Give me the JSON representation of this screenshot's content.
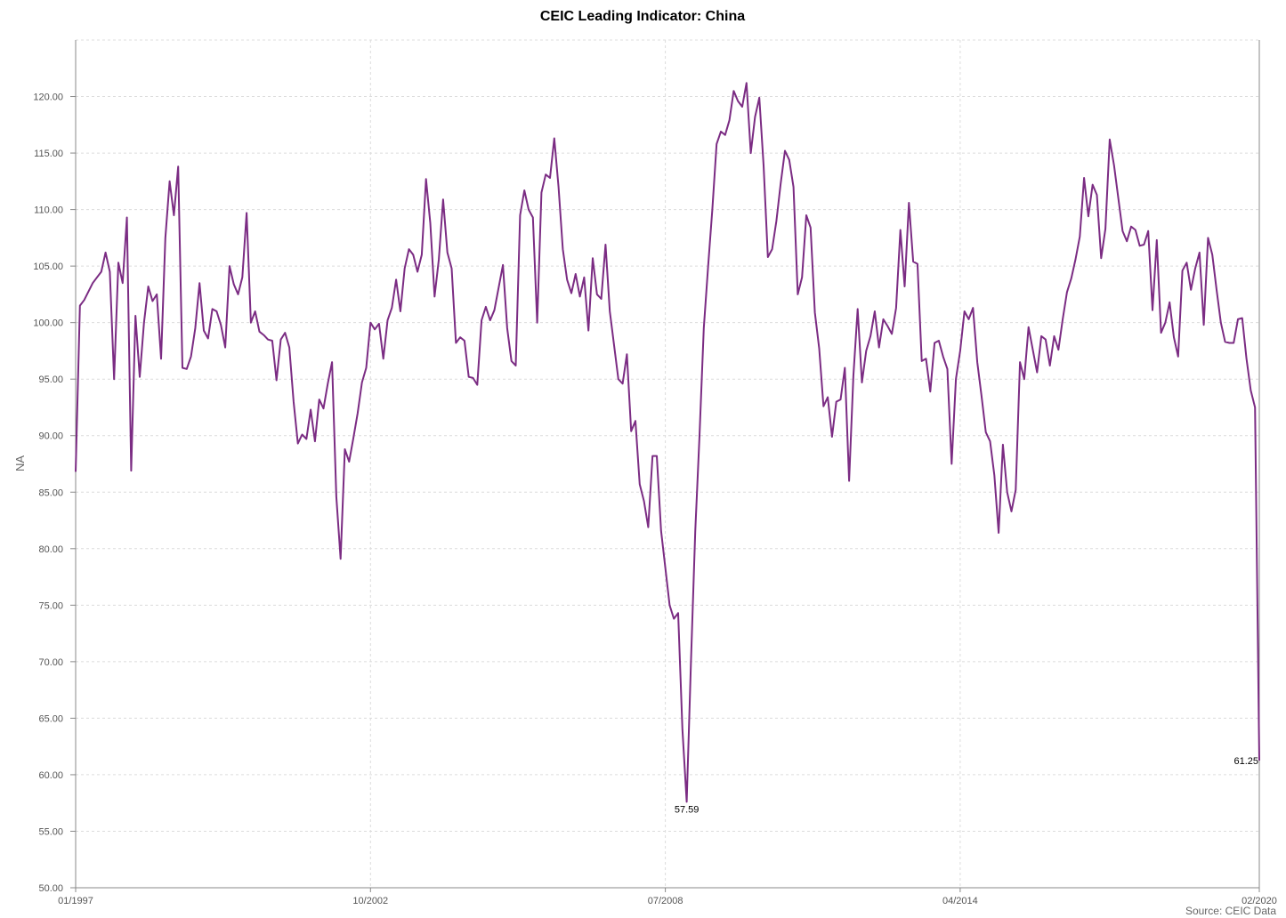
{
  "chart_data": {
    "type": "line",
    "title": "CEIC Leading Indicator: China",
    "ylabel": "NA",
    "xlabel": "",
    "ylim": [
      50,
      125
    ],
    "xlim": [
      "1997-01",
      "2020-02"
    ],
    "y_ticks": [
      "50.00",
      "55.00",
      "60.00",
      "65.00",
      "70.00",
      "75.00",
      "80.00",
      "85.00",
      "90.00",
      "95.00",
      "100.00",
      "105.00",
      "110.00",
      "115.00",
      "120.00"
    ],
    "x_ticks": [
      "01/1997",
      "10/2002",
      "07/2008",
      "04/2014",
      "02/2020"
    ],
    "grid": true,
    "series": [
      {
        "color": "#7b2c83",
        "points": [
          [
            "1997-01",
            86.8
          ],
          [
            "1997-02",
            101.5
          ],
          [
            "1997-03",
            102.0
          ],
          [
            "1997-05",
            103.5
          ],
          [
            "1997-06",
            104.0
          ],
          [
            "1997-07",
            104.5
          ],
          [
            "1997-08",
            106.2
          ],
          [
            "1997-09",
            104.5
          ],
          [
            "1997-10",
            95.0
          ],
          [
            "1997-11",
            105.3
          ],
          [
            "1997-12",
            103.5
          ],
          [
            "1998-01",
            109.3
          ],
          [
            "1998-02",
            86.9
          ],
          [
            "1998-03",
            100.6
          ],
          [
            "1998-04",
            95.2
          ],
          [
            "1998-05",
            100.0
          ],
          [
            "1998-06",
            103.2
          ],
          [
            "1998-07",
            101.9
          ],
          [
            "1998-08",
            102.5
          ],
          [
            "1998-09",
            96.8
          ],
          [
            "1998-10",
            107.5
          ],
          [
            "1998-11",
            112.5
          ],
          [
            "1998-12",
            109.5
          ],
          [
            "1999-01",
            113.8
          ],
          [
            "1999-02",
            96.0
          ],
          [
            "1999-03",
            95.9
          ],
          [
            "1999-04",
            97.0
          ],
          [
            "1999-05",
            99.5
          ],
          [
            "1999-06",
            103.5
          ],
          [
            "1999-07",
            99.3
          ],
          [
            "1999-08",
            98.6
          ],
          [
            "1999-09",
            101.2
          ],
          [
            "1999-10",
            101.0
          ],
          [
            "1999-11",
            99.8
          ],
          [
            "1999-12",
            97.8
          ],
          [
            "2000-01",
            105.0
          ],
          [
            "2000-02",
            103.4
          ],
          [
            "2000-03",
            102.5
          ],
          [
            "2000-04",
            104.0
          ],
          [
            "2000-05",
            109.7
          ],
          [
            "2000-06",
            100.0
          ],
          [
            "2000-07",
            101.0
          ],
          [
            "2000-08",
            99.2
          ],
          [
            "2000-09",
            98.9
          ],
          [
            "2000-10",
            98.5
          ],
          [
            "2000-11",
            98.4
          ],
          [
            "2000-12",
            94.9
          ],
          [
            "2001-01",
            98.5
          ],
          [
            "2001-02",
            99.1
          ],
          [
            "2001-03",
            97.8
          ],
          [
            "2001-04",
            93.0
          ],
          [
            "2001-05",
            89.3
          ],
          [
            "2001-06",
            90.1
          ],
          [
            "2001-07",
            89.7
          ],
          [
            "2001-08",
            92.3
          ],
          [
            "2001-09",
            89.5
          ],
          [
            "2001-10",
            93.2
          ],
          [
            "2001-11",
            92.4
          ],
          [
            "2001-12",
            94.6
          ],
          [
            "2002-01",
            96.5
          ],
          [
            "2002-02",
            84.6
          ],
          [
            "2002-03",
            79.1
          ],
          [
            "2002-04",
            88.8
          ],
          [
            "2002-05",
            87.7
          ],
          [
            "2002-06",
            89.8
          ],
          [
            "2002-07",
            92.0
          ],
          [
            "2002-08",
            94.7
          ],
          [
            "2002-09",
            96.0
          ],
          [
            "2002-10",
            100.0
          ],
          [
            "2002-11",
            99.4
          ],
          [
            "2002-12",
            99.9
          ],
          [
            "2003-01",
            96.8
          ],
          [
            "2003-02",
            100.2
          ],
          [
            "2003-03",
            101.3
          ],
          [
            "2003-04",
            103.8
          ],
          [
            "2003-05",
            101.0
          ],
          [
            "2003-06",
            104.8
          ],
          [
            "2003-07",
            106.5
          ],
          [
            "2003-08",
            106.0
          ],
          [
            "2003-09",
            104.5
          ],
          [
            "2003-10",
            106.0
          ],
          [
            "2003-11",
            112.7
          ],
          [
            "2003-12",
            108.8
          ],
          [
            "2004-01",
            102.3
          ],
          [
            "2004-02",
            105.6
          ],
          [
            "2004-03",
            110.9
          ],
          [
            "2004-04",
            106.2
          ],
          [
            "2004-05",
            104.8
          ],
          [
            "2004-06",
            98.2
          ],
          [
            "2004-07",
            98.7
          ],
          [
            "2004-08",
            98.4
          ],
          [
            "2004-09",
            95.2
          ],
          [
            "2004-10",
            95.1
          ],
          [
            "2004-11",
            94.5
          ],
          [
            "2004-12",
            100.2
          ],
          [
            "2005-01",
            101.4
          ],
          [
            "2005-02",
            100.2
          ],
          [
            "2005-03",
            101.1
          ],
          [
            "2005-04",
            103.1
          ],
          [
            "2005-05",
            105.1
          ],
          [
            "2005-06",
            99.5
          ],
          [
            "2005-07",
            96.6
          ],
          [
            "2005-08",
            96.2
          ],
          [
            "2005-09",
            109.5
          ],
          [
            "2005-10",
            111.7
          ],
          [
            "2005-11",
            110.0
          ],
          [
            "2005-12",
            109.3
          ],
          [
            "2006-01",
            100.0
          ],
          [
            "2006-02",
            111.5
          ],
          [
            "2006-03",
            113.1
          ],
          [
            "2006-04",
            112.8
          ],
          [
            "2006-05",
            116.3
          ],
          [
            "2006-06",
            112.0
          ],
          [
            "2006-07",
            106.5
          ],
          [
            "2006-08",
            103.8
          ],
          [
            "2006-09",
            102.6
          ],
          [
            "2006-10",
            104.3
          ],
          [
            "2006-11",
            102.3
          ],
          [
            "2006-12",
            104.0
          ],
          [
            "2007-01",
            99.3
          ],
          [
            "2007-02",
            105.7
          ],
          [
            "2007-03",
            102.5
          ],
          [
            "2007-04",
            102.1
          ],
          [
            "2007-05",
            106.9
          ],
          [
            "2007-06",
            101.0
          ],
          [
            "2007-07",
            98.0
          ],
          [
            "2007-08",
            95.0
          ],
          [
            "2007-09",
            94.6
          ],
          [
            "2007-10",
            97.2
          ],
          [
            "2007-11",
            90.4
          ],
          [
            "2007-12",
            91.3
          ],
          [
            "2008-01",
            85.7
          ],
          [
            "2008-02",
            84.2
          ],
          [
            "2008-03",
            81.9
          ],
          [
            "2008-04",
            88.2
          ],
          [
            "2008-05",
            88.2
          ],
          [
            "2008-06",
            81.6
          ],
          [
            "2008-07",
            78.3
          ],
          [
            "2008-08",
            75.0
          ],
          [
            "2008-09",
            73.8
          ],
          [
            "2008-10",
            74.3
          ],
          [
            "2008-11",
            64.0
          ],
          [
            "2008-12",
            57.6
          ],
          [
            "2009-01",
            70.0
          ],
          [
            "2009-02",
            81.5
          ],
          [
            "2009-03",
            90.0
          ],
          [
            "2009-04",
            99.5
          ],
          [
            "2009-05",
            104.9
          ],
          [
            "2009-06",
            110.0
          ],
          [
            "2009-07",
            115.8
          ],
          [
            "2009-08",
            116.9
          ],
          [
            "2009-09",
            116.6
          ],
          [
            "2009-10",
            117.9
          ],
          [
            "2009-11",
            120.5
          ],
          [
            "2009-12",
            119.6
          ],
          [
            "2010-01",
            119.1
          ],
          [
            "2010-02",
            121.2
          ],
          [
            "2010-03",
            115.0
          ],
          [
            "2010-04",
            118.2
          ],
          [
            "2010-05",
            119.9
          ],
          [
            "2010-06",
            113.9
          ],
          [
            "2010-07",
            105.8
          ],
          [
            "2010-08",
            106.5
          ],
          [
            "2010-09",
            109.0
          ],
          [
            "2010-10",
            112.3
          ],
          [
            "2010-11",
            115.2
          ],
          [
            "2010-12",
            114.4
          ],
          [
            "2011-01",
            112.0
          ],
          [
            "2011-02",
            102.5
          ],
          [
            "2011-03",
            104.0
          ],
          [
            "2011-04",
            109.5
          ],
          [
            "2011-05",
            108.4
          ],
          [
            "2011-06",
            100.9
          ],
          [
            "2011-07",
            97.7
          ],
          [
            "2011-08",
            92.6
          ],
          [
            "2011-09",
            93.4
          ],
          [
            "2011-10",
            89.9
          ],
          [
            "2011-11",
            93.0
          ],
          [
            "2011-12",
            93.2
          ],
          [
            "2012-01",
            96.0
          ],
          [
            "2012-02",
            86.0
          ],
          [
            "2012-03",
            95.3
          ],
          [
            "2012-04",
            101.2
          ],
          [
            "2012-05",
            94.7
          ],
          [
            "2012-06",
            97.5
          ],
          [
            "2012-07",
            98.8
          ],
          [
            "2012-08",
            101.0
          ],
          [
            "2012-09",
            97.8
          ],
          [
            "2012-10",
            100.3
          ],
          [
            "2012-11",
            99.7
          ],
          [
            "2012-12",
            99.0
          ],
          [
            "2013-01",
            101.3
          ],
          [
            "2013-02",
            108.2
          ],
          [
            "2013-03",
            103.2
          ],
          [
            "2013-04",
            110.6
          ],
          [
            "2013-05",
            105.4
          ],
          [
            "2013-06",
            105.2
          ],
          [
            "2013-07",
            96.6
          ],
          [
            "2013-08",
            96.8
          ],
          [
            "2013-09",
            93.9
          ],
          [
            "2013-10",
            98.2
          ],
          [
            "2013-11",
            98.4
          ],
          [
            "2013-12",
            97.0
          ],
          [
            "2014-01",
            95.9
          ],
          [
            "2014-02",
            87.5
          ],
          [
            "2014-03",
            95.0
          ],
          [
            "2014-04",
            97.5
          ],
          [
            "2014-05",
            101.0
          ],
          [
            "2014-06",
            100.3
          ],
          [
            "2014-07",
            101.3
          ],
          [
            "2014-08",
            96.5
          ],
          [
            "2014-09",
            93.5
          ],
          [
            "2014-10",
            90.3
          ],
          [
            "2014-11",
            89.5
          ],
          [
            "2014-12",
            86.5
          ],
          [
            "2015-01",
            81.4
          ],
          [
            "2015-02",
            89.2
          ],
          [
            "2015-03",
            85.0
          ],
          [
            "2015-04",
            83.3
          ],
          [
            "2015-05",
            85.2
          ],
          [
            "2015-06",
            96.5
          ],
          [
            "2015-07",
            95.0
          ],
          [
            "2015-08",
            99.6
          ],
          [
            "2015-09",
            97.6
          ],
          [
            "2015-10",
            95.6
          ],
          [
            "2015-11",
            98.8
          ],
          [
            "2015-12",
            98.5
          ],
          [
            "2016-01",
            96.2
          ],
          [
            "2016-02",
            98.8
          ],
          [
            "2016-03",
            97.6
          ],
          [
            "2016-04",
            100.3
          ],
          [
            "2016-05",
            102.7
          ],
          [
            "2016-06",
            103.9
          ],
          [
            "2016-07",
            105.6
          ],
          [
            "2016-08",
            107.6
          ],
          [
            "2016-09",
            112.8
          ],
          [
            "2016-10",
            109.4
          ],
          [
            "2016-11",
            112.2
          ],
          [
            "2016-12",
            111.3
          ],
          [
            "2017-01",
            105.7
          ],
          [
            "2017-02",
            108.3
          ],
          [
            "2017-03",
            116.2
          ],
          [
            "2017-04",
            113.9
          ],
          [
            "2017-05",
            111.0
          ],
          [
            "2017-06",
            108.1
          ],
          [
            "2017-07",
            107.2
          ],
          [
            "2017-08",
            108.5
          ],
          [
            "2017-09",
            108.2
          ],
          [
            "2017-10",
            106.8
          ],
          [
            "2017-11",
            106.9
          ],
          [
            "2017-12",
            108.1
          ],
          [
            "2018-01",
            101.1
          ],
          [
            "2018-02",
            107.3
          ],
          [
            "2018-03",
            99.1
          ],
          [
            "2018-04",
            100.0
          ],
          [
            "2018-05",
            101.8
          ],
          [
            "2018-06",
            98.7
          ],
          [
            "2018-07",
            97.0
          ],
          [
            "2018-08",
            104.6
          ],
          [
            "2018-09",
            105.3
          ],
          [
            "2018-10",
            102.9
          ],
          [
            "2018-11",
            104.8
          ],
          [
            "2018-12",
            106.2
          ],
          [
            "2019-01",
            99.8
          ],
          [
            "2019-02",
            107.5
          ],
          [
            "2019-03",
            106.0
          ],
          [
            "2019-04",
            102.9
          ],
          [
            "2019-05",
            100.0
          ],
          [
            "2019-06",
            98.3
          ],
          [
            "2019-07",
            98.2
          ],
          [
            "2019-08",
            98.2
          ],
          [
            "2019-09",
            100.3
          ],
          [
            "2019-10",
            100.4
          ],
          [
            "2019-11",
            96.8
          ],
          [
            "2019-12",
            94.0
          ],
          [
            "2020-01",
            92.5
          ],
          [
            "2020-02",
            61.25
          ]
        ]
      }
    ],
    "annotations": [
      {
        "label": "57.59",
        "x": "2008-12",
        "y": 57.59
      },
      {
        "label": "61.25",
        "x": "2020-02",
        "y": 61.25
      }
    ],
    "source": "Source: CEIC Data"
  }
}
